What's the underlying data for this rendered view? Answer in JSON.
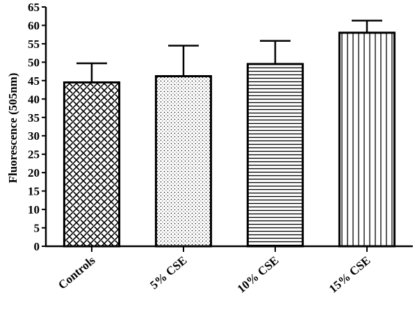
{
  "chart_data": {
    "type": "bar",
    "title": "",
    "xlabel": "",
    "ylabel": "Fluorescence (505nm)",
    "ylim": [
      0,
      65
    ],
    "ytick_step": 5,
    "grid": false,
    "categories": [
      "Controls",
      "5% CSE",
      "10% CSE",
      "15% CSE"
    ],
    "values": [
      44.5,
      46.2,
      49.5,
      58.0
    ],
    "error_upper": [
      5.2,
      8.3,
      6.3,
      3.3
    ],
    "patterns": [
      "crosshatch-brick",
      "dots",
      "horizontal-lines",
      "vertical-lines"
    ]
  },
  "colors": {
    "ink": "#000000",
    "background": "#ffffff"
  }
}
